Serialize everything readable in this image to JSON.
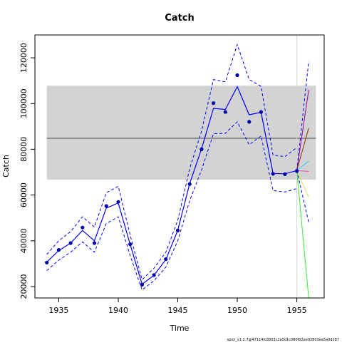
{
  "chart_data": {
    "type": "line",
    "title": "Catch",
    "xlabel": "Time",
    "ylabel": "Catch",
    "footnote": "spict_v1.2.7@47114fc8303c2a5d1c080f02ee02803ea5a0d287",
    "xlim": [
      1933.0,
      1957.3
    ],
    "ylim": [
      15000,
      130000
    ],
    "xticks": [
      1935,
      1940,
      1945,
      1950,
      1955
    ],
    "yticks": [
      20000,
      40000,
      60000,
      80000,
      100000,
      120000
    ],
    "ytick_labels": [
      "20000",
      "40000",
      "60000",
      "80000",
      "100000",
      "120000"
    ],
    "msy_band": {
      "lower": 66700,
      "upper": 107800,
      "center": 84800
    },
    "vertical_line_x": 1955,
    "observed": {
      "x": [
        1934,
        1935,
        1936,
        1937,
        1938,
        1939,
        1940,
        1941,
        1942,
        1943,
        1944,
        1945,
        1946,
        1947,
        1948,
        1949,
        1950,
        1951,
        1952,
        1953,
        1954,
        1955
      ],
      "y": [
        30500,
        36000,
        39000,
        45800,
        39000,
        55200,
        57000,
        38500,
        20800,
        25000,
        32000,
        44500,
        64800,
        80000,
        100200,
        96300,
        112400,
        92000,
        96300,
        69300,
        69100,
        70500
      ]
    },
    "estimate": {
      "x": [
        1934,
        1935,
        1936,
        1937,
        1938,
        1939,
        1940,
        1941,
        1942,
        1943,
        1944,
        1945,
        1946,
        1947,
        1948,
        1949,
        1950,
        1951,
        1952,
        1953,
        1954,
        1955
      ],
      "y": [
        30700,
        35700,
        39000,
        44500,
        40000,
        54300,
        56500,
        38400,
        21000,
        24900,
        31800,
        44600,
        65000,
        80200,
        97900,
        97400,
        107400,
        95100,
        96200,
        69400,
        69300,
        70700
      ]
    },
    "ci_upper": {
      "x": [
        1934,
        1935,
        1936,
        1937,
        1938,
        1939,
        1940,
        1941,
        1942,
        1943,
        1944,
        1945,
        1946,
        1947,
        1948,
        1949,
        1950,
        1951,
        1952,
        1953,
        1954,
        1955
      ],
      "y": [
        34000,
        40000,
        44000,
        50500,
        46000,
        61000,
        63800,
        42500,
        23000,
        28000,
        35000,
        49000,
        71500,
        88000,
        110500,
        109500,
        125800,
        110500,
        107500,
        77500,
        76800,
        80800
      ]
    },
    "ci_lower": {
      "x": [
        1934,
        1935,
        1936,
        1937,
        1938,
        1939,
        1940,
        1941,
        1942,
        1943,
        1944,
        1945,
        1946,
        1947,
        1948,
        1949,
        1950,
        1951,
        1952,
        1953,
        1954,
        1955
      ],
      "y": [
        27000,
        31500,
        35000,
        39500,
        35000,
        47500,
        50500,
        33500,
        18500,
        22500,
        28500,
        40000,
        57500,
        71000,
        86800,
        87000,
        92000,
        82000,
        85800,
        62000,
        61300,
        62800
      ]
    },
    "forecast": {
      "x": [
        1955,
        1956
      ],
      "ci_upper_y": [
        70700,
        118500
      ],
      "ci_lower_y": [
        70700,
        48000
      ],
      "scenarios": [
        {
          "color": "#990099",
          "y": [
            70700,
            106000
          ]
        },
        {
          "color": "#8B2F0A",
          "y": [
            70700,
            89300
          ]
        },
        {
          "color": "#33CCEE",
          "y": [
            70700,
            74800
          ]
        },
        {
          "color": "#EE44CC",
          "y": [
            70700,
            70300
          ]
        },
        {
          "color": "#DDDD55",
          "y": [
            70700,
            59000
          ]
        },
        {
          "color": "#33EE33",
          "y": [
            70700,
            15000
          ]
        }
      ]
    },
    "colors": {
      "main": "#0000ff",
      "band": "#d3d3d3",
      "center_line": "#666666",
      "vertical_line": "#d3d3d3",
      "points": "#0000aa"
    }
  }
}
